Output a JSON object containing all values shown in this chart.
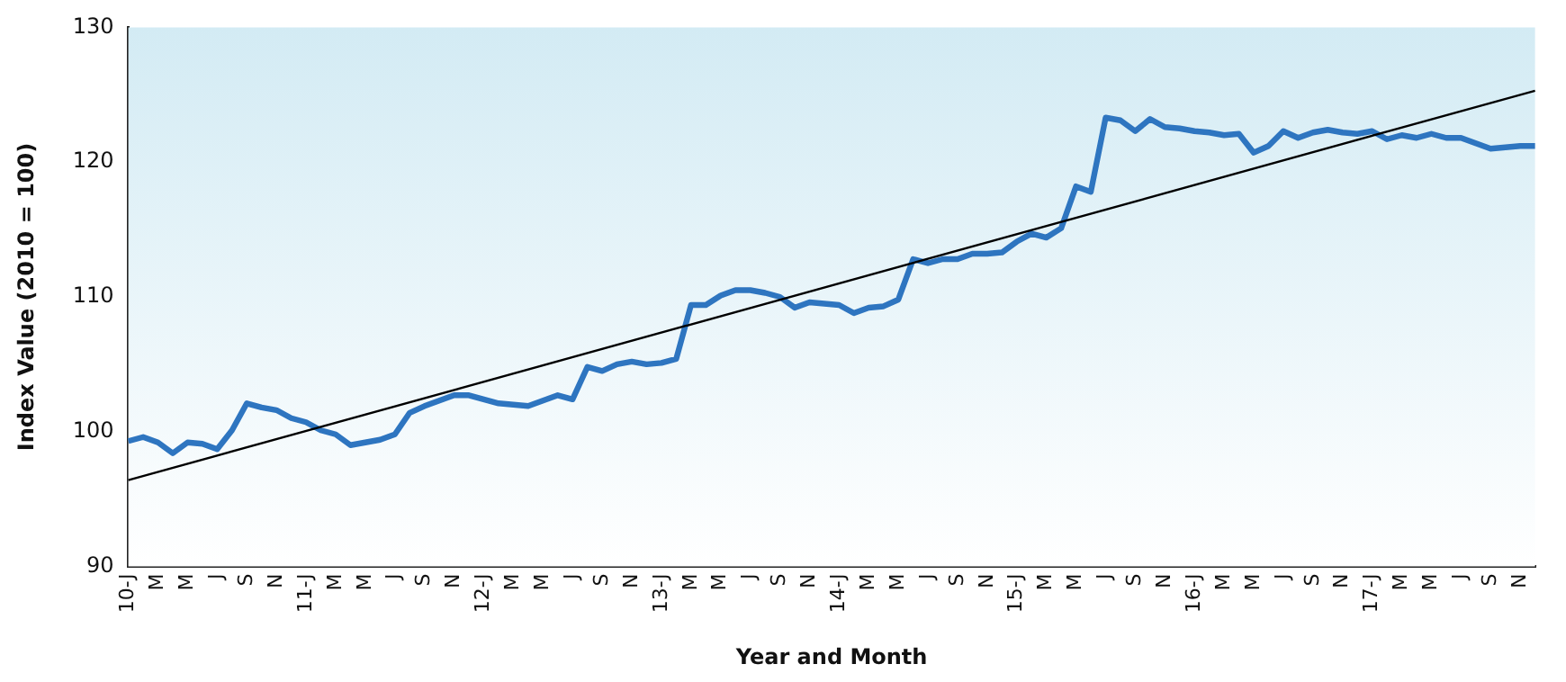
{
  "chart_data": {
    "type": "line",
    "xlabel": "Year and Month",
    "ylabel": "Index Value (2010 = 100)",
    "categories": [
      "10-J",
      null,
      "M",
      null,
      "M",
      null,
      "J",
      null,
      "S",
      null,
      "N",
      null,
      "11-J",
      null,
      "M",
      null,
      "M",
      null,
      "J",
      null,
      "S",
      null,
      "N",
      null,
      "12-J",
      null,
      "M",
      null,
      "M",
      null,
      "J",
      null,
      "S",
      null,
      "N",
      null,
      "13-J",
      null,
      "M",
      null,
      "M",
      null,
      "J",
      null,
      "S",
      null,
      "N",
      null,
      "14-J",
      null,
      "M",
      null,
      "M",
      null,
      "J",
      null,
      "S",
      null,
      "N",
      null,
      "15-J",
      null,
      "M",
      null,
      "M",
      null,
      "J",
      null,
      "S",
      null,
      "N",
      null,
      "16-J",
      null,
      "M",
      null,
      "M",
      null,
      "J",
      null,
      "S",
      null,
      "N",
      null,
      "17-J",
      null,
      "M",
      null,
      "M",
      null,
      "J",
      null,
      "S",
      null,
      "N",
      null
    ],
    "series": [
      {
        "color": "#2e75c0",
        "values": [
          99.3,
          99.6,
          99.2,
          98.4,
          99.2,
          99.1,
          98.7,
          100.1,
          102.1,
          101.8,
          101.6,
          101.0,
          100.7,
          100.1,
          99.8,
          99.0,
          99.2,
          99.4,
          99.8,
          101.4,
          101.9,
          102.3,
          102.7,
          102.7,
          102.4,
          102.1,
          102.0,
          101.9,
          102.3,
          102.7,
          102.4,
          104.8,
          104.5,
          105.0,
          105.2,
          105.0,
          105.1,
          105.4,
          109.4,
          109.4,
          110.1,
          110.5,
          110.5,
          110.3,
          110.0,
          109.2,
          109.6,
          109.5,
          109.4,
          108.8,
          109.2,
          109.3,
          109.8,
          112.8,
          112.5,
          112.8,
          112.8,
          113.2,
          113.2,
          113.3,
          114.1,
          114.7,
          114.4,
          115.1,
          118.2,
          117.8,
          123.3,
          123.1,
          122.3,
          123.2,
          122.6,
          122.5,
          122.3,
          122.2,
          122.0,
          122.1,
          120.7,
          121.2,
          122.3,
          121.8,
          122.2,
          122.4,
          122.2,
          122.1,
          122.3,
          121.7,
          122.0,
          121.8,
          122.1,
          121.8,
          121.8,
          121.4,
          121.0,
          121.1,
          121.2,
          121.2
        ]
      },
      {
        "type": "line",
        "color": "#000000",
        "values": [
          96.4,
          null,
          null,
          null,
          null,
          null,
          null,
          null,
          null,
          null,
          null,
          null,
          null,
          null,
          null,
          null,
          null,
          null,
          null,
          null,
          null,
          null,
          null,
          null,
          null,
          null,
          null,
          null,
          null,
          null,
          null,
          null,
          null,
          null,
          null,
          null,
          null,
          null,
          null,
          null,
          null,
          null,
          null,
          null,
          null,
          null,
          null,
          null,
          null,
          null,
          null,
          null,
          null,
          null,
          null,
          null,
          null,
          null,
          null,
          null,
          null,
          null,
          null,
          null,
          null,
          null,
          null,
          null,
          null,
          null,
          null,
          null,
          null,
          null,
          null,
          null,
          null,
          null,
          null,
          null,
          null,
          null,
          null,
          null,
          null,
          null,
          null,
          null,
          null,
          null,
          null,
          null,
          null,
          null,
          null,
          125.3
        ]
      }
    ],
    "ylim": [
      90,
      130
    ],
    "yticks": [
      90,
      100,
      110,
      120,
      130
    ],
    "grid": false,
    "legend": false,
    "marker": "none",
    "line_style": "solid"
  }
}
